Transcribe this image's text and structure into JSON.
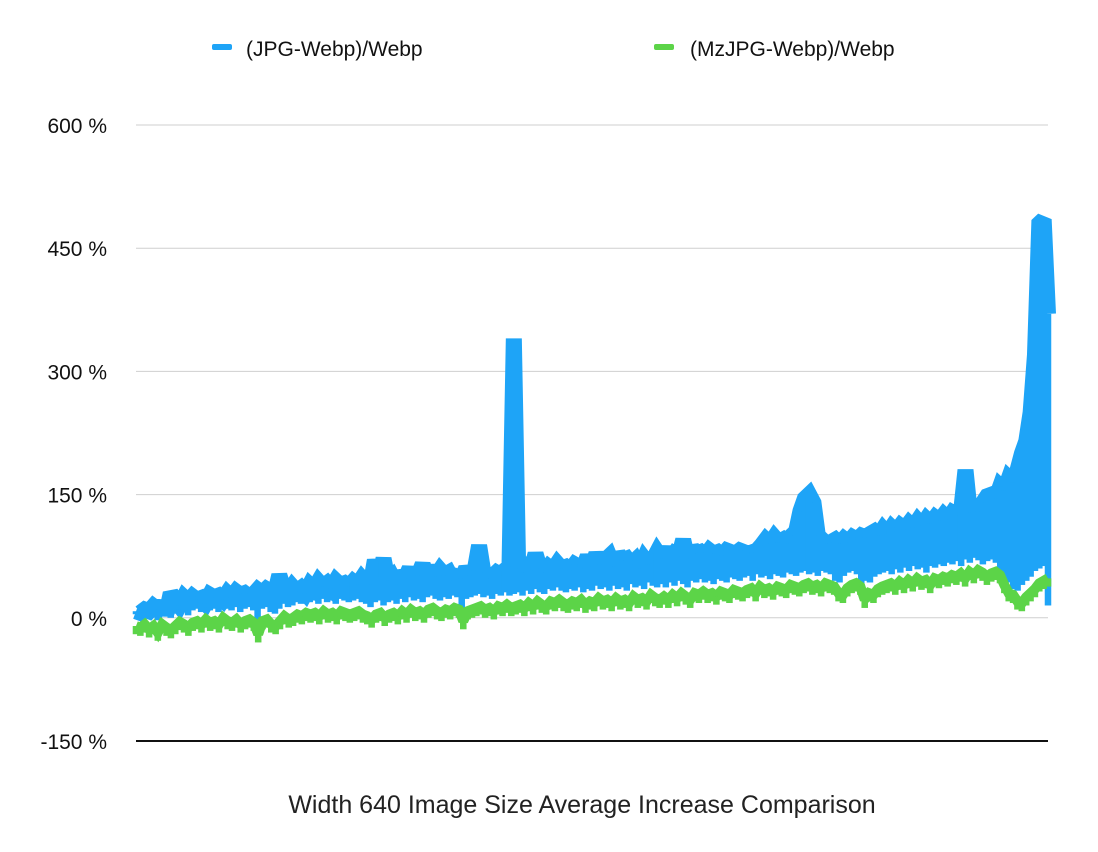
{
  "chart_data": {
    "type": "area",
    "title": "",
    "xlabel": "Width 640 Image Size Average Increase Comparison",
    "ylabel": "",
    "ylim": [
      -150,
      600
    ],
    "yticks": [
      600,
      450,
      300,
      150,
      0,
      -150
    ],
    "ytick_labels": [
      "600 %",
      "450 %",
      "300 %",
      "150 %",
      "0 %",
      "-150 %"
    ],
    "grid": true,
    "legend_position": "top",
    "series": [
      {
        "name": "(JPG-Webp)/Webp",
        "color": "#1ea4f7",
        "values": [
          8,
          6,
          10,
          8,
          14,
          10,
          18,
          5,
          30,
          22,
          15,
          25,
          20,
          26,
          22,
          24,
          18,
          28,
          25,
          27,
          22,
          30,
          25,
          32,
          28,
          30,
          26,
          28,
          34,
          30,
          35,
          32,
          30,
          52,
          35,
          30,
          38,
          32,
          36,
          30,
          40,
          35,
          44,
          38,
          42,
          36,
          45,
          40,
          42,
          38,
          44,
          40,
          48,
          42,
          40,
          70,
          50,
          72,
          45,
          50,
          40,
          55,
          48,
          60,
          45,
          52,
          65,
          48,
          62,
          50,
          58,
          52,
          55,
          45,
          50,
          48,
          60,
          52,
          58,
          88,
          55,
          48,
          50,
          55,
          52,
          58,
          62,
          340,
          60,
          55,
          62,
          58,
          78,
          60,
          55,
          62,
          58,
          66,
          60,
          62,
          58,
          65,
          62,
          60,
          75,
          62,
          78,
          65,
          70,
          75,
          62,
          78,
          70,
          72,
          65,
          70,
          60,
          72,
          65,
          70,
          80,
          72,
          85,
          70,
          78,
          75,
          95,
          72,
          85,
          78,
          80,
          75,
          82,
          78,
          80,
          76,
          82,
          80,
          78,
          82,
          80,
          78,
          80,
          82,
          88,
          95,
          90,
          98,
          92,
          95,
          90,
          100,
          105,
          130,
          145,
          150,
          140,
          100,
          95,
          90,
          92,
          95,
          90,
          96,
          92,
          98,
          95,
          100,
          98,
          102,
          105,
          100,
          108,
          102,
          110,
          105,
          112,
          108,
          115,
          110,
          118,
          112,
          120,
          115,
          122,
          118,
          125,
          120,
          128,
          125,
          130,
          180,
          128,
          135,
          130,
          140,
          148,
          150,
          145,
          160,
          155,
          170,
          165,
          180,
          200,
          215,
          250,
          320,
          480,
          485,
          370
        ]
      },
      {
        "name": "(MzJPG-Webp)/Webp",
        "color": "#5cd448",
        "values": [
          -10,
          -12,
          -8,
          -14,
          -10,
          -18,
          -8,
          -12,
          -15,
          -10,
          -5,
          -8,
          -12,
          -6,
          -4,
          -8,
          -2,
          -6,
          -4,
          -8,
          0,
          -4,
          -6,
          -2,
          -8,
          -4,
          -2,
          -6,
          -20,
          -4,
          -2,
          -8,
          -10,
          -4,
          2,
          -2,
          0,
          4,
          2,
          6,
          4,
          6,
          2,
          8,
          4,
          6,
          2,
          8,
          6,
          4,
          6,
          8,
          4,
          2,
          -2,
          4,
          6,
          0,
          4,
          6,
          2,
          8,
          4,
          10,
          6,
          8,
          4,
          10,
          12,
          8,
          6,
          10,
          8,
          12,
          10,
          -4,
          8,
          10,
          12,
          14,
          10,
          12,
          8,
          14,
          12,
          16,
          12,
          14,
          16,
          12,
          18,
          14,
          20,
          16,
          14,
          20,
          18,
          22,
          18,
          16,
          20,
          18,
          22,
          16,
          20,
          18,
          24,
          20,
          22,
          18,
          24,
          20,
          22,
          18,
          26,
          22,
          24,
          20,
          28,
          24,
          22,
          26,
          22,
          28,
          24,
          30,
          26,
          22,
          30,
          28,
          32,
          28,
          30,
          26,
          32,
          30,
          28,
          34,
          32,
          30,
          34,
          36,
          30,
          38,
          34,
          36,
          32,
          38,
          36,
          34,
          40,
          38,
          36,
          40,
          42,
          38,
          40,
          36,
          42,
          40,
          38,
          30,
          28,
          36,
          40,
          42,
          38,
          22,
          30,
          28,
          35,
          38,
          40,
          42,
          38,
          44,
          40,
          46,
          42,
          48,
          44,
          46,
          40,
          48,
          46,
          50,
          48,
          52,
          50,
          54,
          48,
          56,
          52,
          58,
          55,
          50,
          54,
          56,
          52,
          40,
          30,
          28,
          20,
          18,
          25,
          30,
          35,
          42,
          45,
          48
        ]
      }
    ]
  }
}
